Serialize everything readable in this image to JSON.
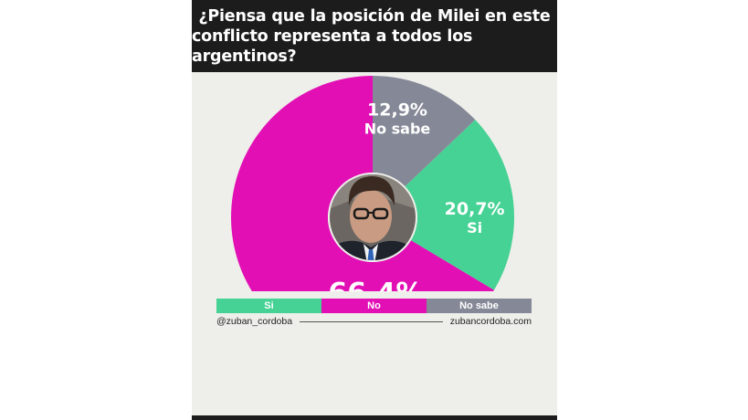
{
  "header": {
    "title_line1": "¿Piensa que la posición de Milei en este",
    "title_line2": "conflicto representa a todos los argentinos?"
  },
  "chart_data": {
    "type": "pie",
    "variant": "donut",
    "title": "¿Piensa que la posición de Milei en este conflicto representa a todos los argentinos?",
    "slices": [
      {
        "name": "No sabe",
        "value": 12.9,
        "label": "12,9%",
        "color": "#858997"
      },
      {
        "name": "Si",
        "value": 20.7,
        "label": "20,7%",
        "color": "#45d294"
      },
      {
        "name": "No",
        "value": 66.4,
        "label": "66,4%",
        "color": "#e20fb4"
      }
    ]
  },
  "legend": {
    "items": [
      {
        "label": "Si",
        "color": "#45d294"
      },
      {
        "label": "No",
        "color": "#e20fb4"
      },
      {
        "label": "No sabe",
        "color": "#858997"
      }
    ]
  },
  "footer": {
    "handle": "@zuban_cordoba",
    "website": "zubancordoba.com"
  }
}
